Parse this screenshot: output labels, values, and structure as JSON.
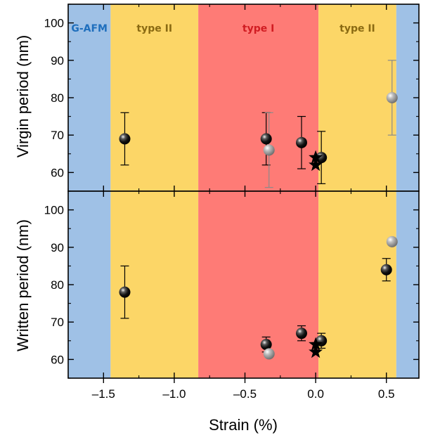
{
  "chart_data": [
    {
      "type": "scatter",
      "panel": "top",
      "ylabel": "Virgin period (nm)",
      "xlim": [
        -1.75,
        0.73
      ],
      "ylim": [
        55,
        105
      ],
      "yticks": [
        60,
        70,
        80,
        90,
        100
      ],
      "y_tick_labels": [
        "60",
        "70",
        "80",
        "90",
        "100"
      ],
      "grid": false,
      "series": [
        {
          "marker": "black-sphere",
          "color": "#000000",
          "points": [
            {
              "x": -1.35,
              "y": 69,
              "err": 7
            },
            {
              "x": -0.35,
              "y": 69,
              "err": 7
            },
            {
              "x": -0.1,
              "y": 68,
              "err": 7
            },
            {
              "x": 0.04,
              "y": 64,
              "err": 7
            }
          ]
        },
        {
          "marker": "gray-sphere",
          "color": "#9a9a9a",
          "points": [
            {
              "x": -0.33,
              "y": 66,
              "err": 10
            },
            {
              "x": 0.54,
              "y": 80,
              "err": 10
            }
          ]
        },
        {
          "marker": "star",
          "color": "#000000",
          "points": [
            {
              "x": 0.0,
              "y": 64
            },
            {
              "x": 0.0,
              "y": 62
            }
          ]
        }
      ]
    },
    {
      "type": "scatter",
      "panel": "bottom",
      "ylabel": "Written period (nm)",
      "xlabel": "Strain (%)",
      "xlim": [
        -1.75,
        0.73
      ],
      "ylim": [
        55,
        105
      ],
      "xticks": [
        -1.5,
        -1.0,
        -0.5,
        0.0,
        0.5
      ],
      "x_tick_labels": [
        "–1.5",
        "–1.0",
        "–0.5",
        "0.0",
        "0.5"
      ],
      "yticks": [
        60,
        70,
        80,
        90,
        100
      ],
      "y_tick_labels": [
        "60",
        "70",
        "80",
        "90",
        "100"
      ],
      "grid": false,
      "series": [
        {
          "marker": "black-sphere",
          "color": "#000000",
          "points": [
            {
              "x": -1.35,
              "y": 78,
              "err": 7
            },
            {
              "x": -0.35,
              "y": 64,
              "err": 2
            },
            {
              "x": -0.1,
              "y": 67,
              "err": 2
            },
            {
              "x": 0.04,
              "y": 65,
              "err": 2
            },
            {
              "x": 0.5,
              "y": 84,
              "err": 3
            }
          ]
        },
        {
          "marker": "gray-sphere",
          "color": "#9a9a9a",
          "points": [
            {
              "x": -0.33,
              "y": 61.5
            },
            {
              "x": 0.54,
              "y": 91.5
            }
          ]
        },
        {
          "marker": "star",
          "color": "#000000",
          "points": [
            {
              "x": 0.0,
              "y": 64
            },
            {
              "x": 0.0,
              "y": 62
            }
          ]
        }
      ]
    }
  ],
  "regions": [
    {
      "label": "G-AFM",
      "x_from": -1.75,
      "x_to": -1.45,
      "color": "#9fc1e6",
      "label_color": "#1f6fbd"
    },
    {
      "label": "type II",
      "x_from": -1.45,
      "x_to": -0.83,
      "color": "#fcd667",
      "label_color": "#8a6a12"
    },
    {
      "label": "type I",
      "x_from": -0.83,
      "x_to": 0.02,
      "color": "#fe7b76",
      "label_color": "#d11c22"
    },
    {
      "label": "type II",
      "x_from": 0.02,
      "x_to": 0.57,
      "color": "#fcd667",
      "label_color": "#8a6a12"
    },
    {
      "label": "",
      "x_from": 0.57,
      "x_to": 0.73,
      "color": "#9fc1e6",
      "label_color": "#1f6fbd"
    }
  ]
}
